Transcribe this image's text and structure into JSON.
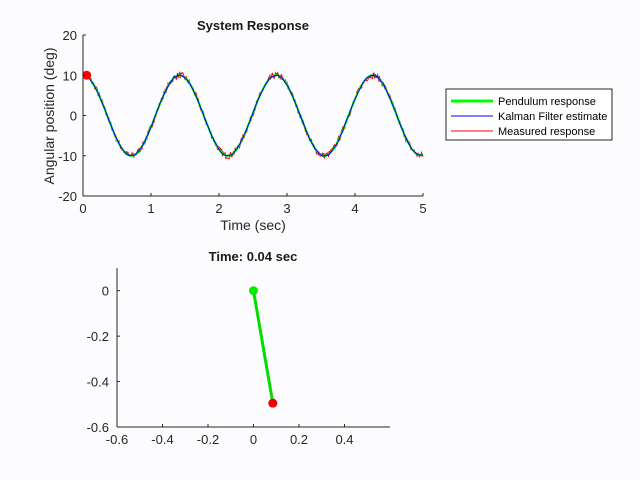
{
  "chart_data": [
    {
      "type": "line",
      "title": "System Response",
      "xlabel": "Time (sec)",
      "ylabel": "Angular position (deg)",
      "xlim": [
        0,
        5
      ],
      "ylim": [
        -20,
        20
      ],
      "xticks": [
        "0",
        "1",
        "2",
        "3",
        "4",
        "5"
      ],
      "yticks": [
        "20",
        "10",
        "0",
        "-10",
        "-20"
      ],
      "grid": false,
      "legend_position": "outside-right",
      "x": [
        0,
        0.1,
        0.2,
        0.3,
        0.4,
        0.5,
        0.6,
        0.7,
        0.8,
        0.9,
        1.0,
        1.1,
        1.2,
        1.3,
        1.4,
        1.5,
        1.6,
        1.7,
        1.8,
        1.9,
        2.0,
        2.1,
        2.2,
        2.3,
        2.4,
        2.5,
        2.6,
        2.7,
        2.8,
        2.9,
        3.0,
        3.1,
        3.2,
        3.3,
        3.4,
        3.5,
        3.6,
        3.7,
        3.8,
        3.9,
        4.0,
        4.1,
        4.2,
        4.3,
        4.4,
        4.5,
        4.6,
        4.7,
        4.8,
        4.9,
        5.0
      ],
      "series": [
        {
          "name": "Pendulum response",
          "color": "#00ff00",
          "values": [
            10,
            9.04,
            6.33,
            2.41,
            -1.98,
            -5.98,
            -8.84,
            -9.99,
            -9.22,
            -6.67,
            -2.85,
            1.54,
            5.61,
            8.61,
            9.96,
            9.38,
            6.99,
            3.26,
            -1.1,
            -5.24,
            -8.39,
            -9.91,
            -9.51,
            -7.29,
            -3.68,
            0.66,
            4.87,
            8.14,
            9.84,
            9.65,
            7.6,
            4.08,
            -0.22,
            -4.48,
            -7.88,
            -9.76,
            -9.75,
            -7.89,
            -4.48,
            -0.22,
            4.08,
            7.6,
            9.65,
            9.84,
            8.14,
            4.87,
            0.66,
            -3.68,
            -7.29,
            -9.51,
            -9.91
          ]
        },
        {
          "name": "Kalman Filter estimate",
          "color": "#0000ff",
          "values": [
            10,
            9.04,
            6.33,
            2.41,
            -1.98,
            -5.98,
            -8.84,
            -9.99,
            -9.22,
            -6.67,
            -2.85,
            1.54,
            5.61,
            8.61,
            9.96,
            9.38,
            6.99,
            3.26,
            -1.1,
            -5.24,
            -8.39,
            -9.91,
            -9.51,
            -7.29,
            -3.68,
            0.66,
            4.87,
            8.14,
            9.84,
            9.65,
            7.6,
            4.08,
            -0.22,
            -4.48,
            -7.88,
            -9.76,
            -9.75,
            -7.89,
            -4.48,
            -0.22,
            4.08,
            7.6,
            9.65,
            9.84,
            8.14,
            4.87,
            0.66,
            -3.68,
            -7.29,
            -9.51,
            -9.91
          ]
        },
        {
          "name": "Measured response",
          "color": "#ff0000",
          "values": [
            10,
            9.04,
            6.33,
            2.41,
            -1.98,
            -5.98,
            -8.84,
            -9.99,
            -9.22,
            -6.67,
            -2.85,
            1.54,
            5.61,
            8.61,
            9.96,
            9.38,
            6.99,
            3.26,
            -1.1,
            -5.24,
            -8.39,
            -9.91,
            -9.51,
            -7.29,
            -3.68,
            0.66,
            4.87,
            8.14,
            9.84,
            9.65,
            7.6,
            4.08,
            -0.22,
            -4.48,
            -7.88,
            -9.76,
            -9.75,
            -7.89,
            -4.48,
            -0.22,
            4.08,
            7.6,
            9.65,
            9.84,
            8.14,
            4.87,
            0.66,
            -3.68,
            -7.29,
            -9.51,
            -9.91
          ]
        }
      ],
      "current_marker": {
        "x": 0.04,
        "y": 10,
        "color": "#ff0000"
      }
    },
    {
      "type": "line",
      "title": "Time: 0.04 sec",
      "xlim": [
        -0.6,
        0.6
      ],
      "ylim": [
        -0.6,
        0.1
      ],
      "xticks": [
        "-0.6",
        "-0.4",
        "-0.2",
        "0",
        "0.2",
        "0.4"
      ],
      "yticks": [
        "0",
        "-0.2",
        "-0.4",
        "-0.6"
      ],
      "grid": false,
      "pivot": {
        "x": 0,
        "y": 0,
        "color": "#00ee00"
      },
      "bob": {
        "x": 0.085,
        "y": -0.495,
        "color": "#ee0000"
      },
      "rod_color": "#00dd00"
    }
  ]
}
